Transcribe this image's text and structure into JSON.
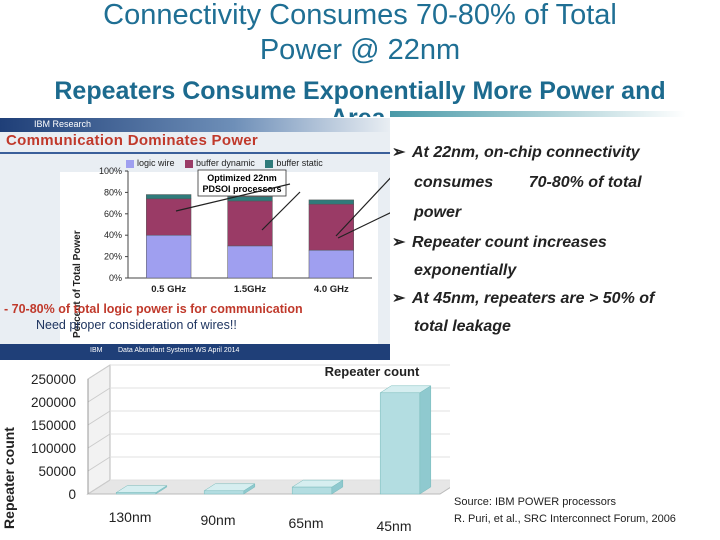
{
  "title": {
    "main_line1": "Connectivity Consumes 70-80% of Total",
    "main_line2": "Power @ 22nm",
    "sub_line1": "Repeaters Consume Exponentially More Power and",
    "sub_line2": "Area"
  },
  "slide": {
    "header": "IBM Research",
    "title": "Communication Dominates Power",
    "legend": [
      "logic wire",
      "buffer dynamic",
      "buffer static"
    ],
    "annotation_line1": "Optimized 22nm",
    "annotation_line2": "PDSOI processors",
    "callout": "- 70-80% of total logic power is for communication",
    "callout2": "Need proper consideration of wires!!",
    "footer_left": "IBM",
    "footer_right": "Data Abundant Systems WS April 2014",
    "colors": {
      "logic_wire": "#9f9ff0",
      "buffer_dynamic": "#9a3b66",
      "buffer_static": "#2f7b7b"
    }
  },
  "bullets": [
    {
      "lines": [
        "At 22nm, on-chip connectivity",
        "consumes        70-80% of total",
        "power"
      ]
    },
    {
      "lines": [
        "Repeater count increases",
        "exponentially"
      ]
    },
    {
      "lines": [
        "At 45nm, repeaters are > 50% of",
        "total leakage"
      ]
    }
  ],
  "source": {
    "line1": "Source: IBM POWER processors",
    "line2": "R. Puri, et al., SRC Interconnect Forum, 2006"
  },
  "chart_data": [
    {
      "type": "bar",
      "stacked": true,
      "title": "",
      "categories": [
        "0.5 GHz",
        "1.5GHz",
        "4.0 GHz"
      ],
      "series": [
        {
          "name": "logic wire",
          "values": [
            40,
            30,
            26
          ]
        },
        {
          "name": "buffer dynamic",
          "values": [
            34,
            42,
            43
          ]
        },
        {
          "name": "buffer static",
          "values": [
            4,
            4,
            4
          ]
        }
      ],
      "ylabel": "Percent of Total Power",
      "yticks": [
        "0%",
        "20%",
        "40%",
        "60%",
        "80%",
        "100%"
      ],
      "ylim": [
        0,
        100
      ]
    },
    {
      "type": "bar",
      "title": "Repeater count",
      "categories": [
        "130nm",
        "90nm",
        "65nm",
        "45nm"
      ],
      "values": [
        3000,
        7000,
        15000,
        220000
      ],
      "ylabel": "Repeater count",
      "yticks": [
        "0",
        "50000",
        "100000",
        "150000",
        "200000",
        "250000"
      ],
      "ylim": [
        0,
        250000
      ]
    }
  ]
}
